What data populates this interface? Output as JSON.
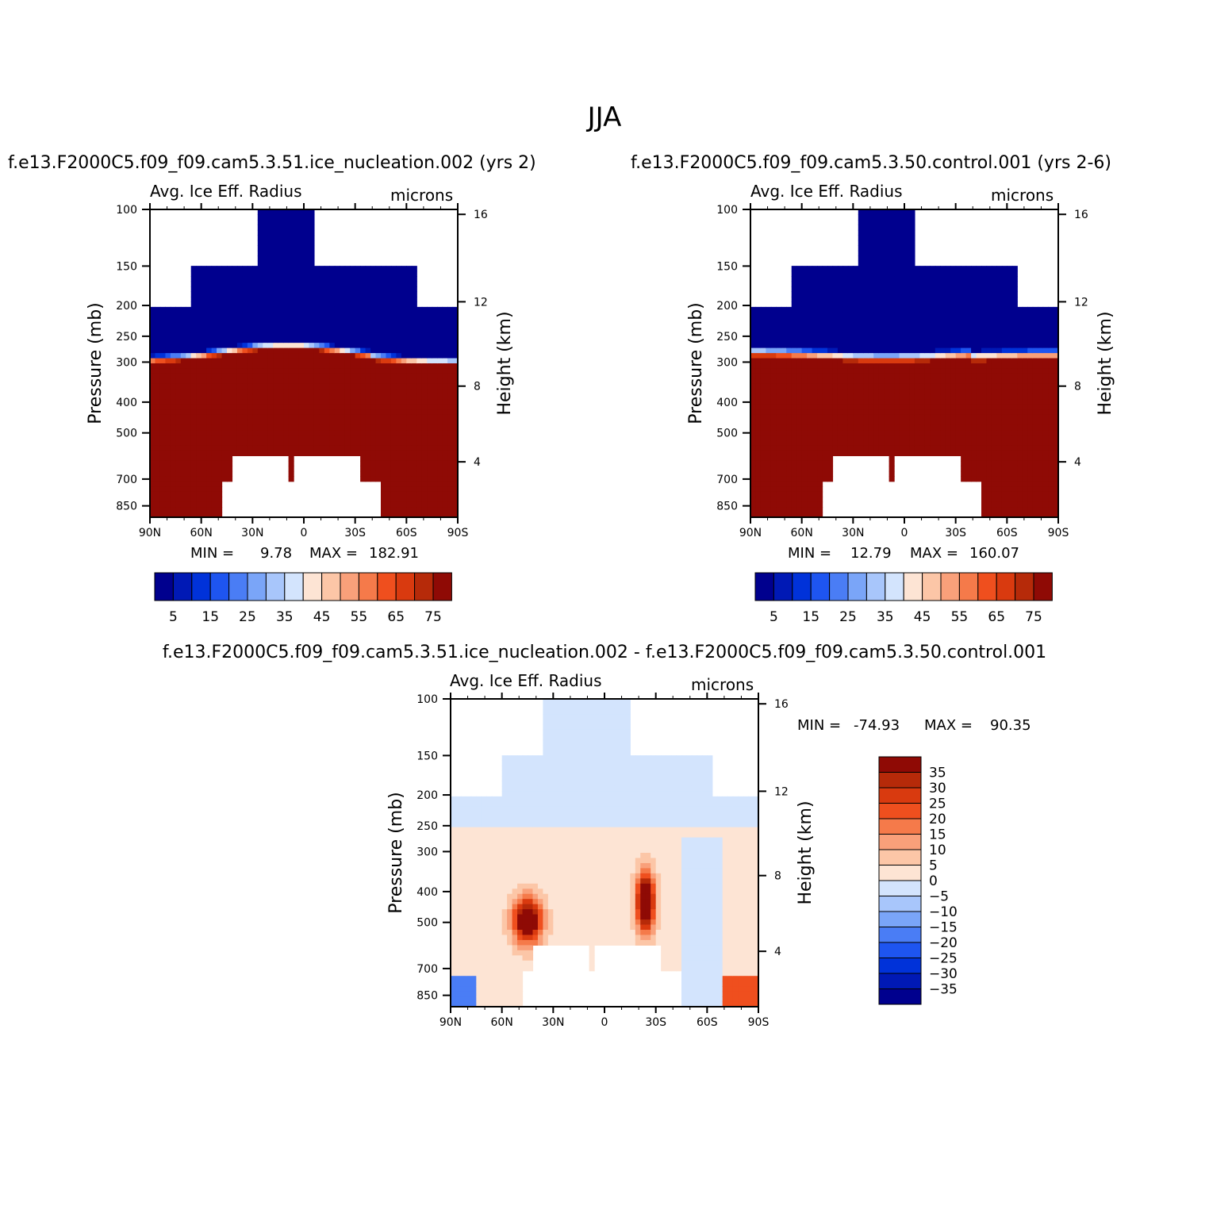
{
  "figure": {
    "title": "JJA",
    "left_case_title": "f.e13.F2000C5.f09_f09.cam5.3.51.ice_nucleation.002 (yrs 2)",
    "right_case_title": "f.e13.F2000C5.f09_f09.cam5.3.50.control.001 (yrs 2-6)",
    "diff_title": "f.e13.F2000C5.f09_f09.cam5.3.51.ice_nucleation.002 - f.e13.F2000C5.f09_f09.cam5.3.50.control.001"
  },
  "chart_data": [
    {
      "type": "heatmap",
      "id": "panel-a",
      "title_left": "Avg. Ice Eff. Radius",
      "title_right": "microns",
      "xlabel": "",
      "ylabel": "Pressure (mb)",
      "ylabel_right": "Height (km)",
      "x_ticks": [
        "90N",
        "60N",
        "30N",
        "0",
        "30S",
        "60S",
        "90S"
      ],
      "y_ticks": [
        "100",
        "150",
        "200",
        "250",
        "300",
        "400",
        "500",
        "700",
        "850"
      ],
      "y_ticks_right": [
        "16",
        "12",
        "8",
        "4"
      ],
      "stats": {
        "min_label": "MIN =",
        "min": "9.78",
        "max_label": "MAX =",
        "max": "182.91"
      },
      "colorbar": {
        "orientation": "horizontal",
        "levels": [
          5,
          10,
          15,
          20,
          25,
          30,
          35,
          40,
          45,
          50,
          55,
          60,
          65,
          70,
          75
        ],
        "labels": [
          "5",
          "15",
          "25",
          "35",
          "45",
          "55",
          "65",
          "75"
        ],
        "colors": [
          "#00008e",
          "#0019b5",
          "#0032d9",
          "#1e55f0",
          "#4a7df5",
          "#7aa5f8",
          "#a8c6fb",
          "#d3e4fd",
          "#fde4d4",
          "#fcc6a7",
          "#f9a07a",
          "#f57a4a",
          "#ef4f1e",
          "#d93a0f",
          "#b62a09",
          "#8f0a05"
        ]
      }
    },
    {
      "type": "heatmap",
      "id": "panel-b",
      "title_left": "Avg. Ice Eff. Radius",
      "title_right": "microns",
      "xlabel": "",
      "ylabel": "Pressure (mb)",
      "ylabel_right": "Height (km)",
      "x_ticks": [
        "90N",
        "60N",
        "30N",
        "0",
        "30S",
        "60S",
        "90S"
      ],
      "y_ticks": [
        "100",
        "150",
        "200",
        "250",
        "300",
        "400",
        "500",
        "700",
        "850"
      ],
      "y_ticks_right": [
        "16",
        "12",
        "8",
        "4"
      ],
      "stats": {
        "min_label": "MIN =",
        "min": "12.79",
        "max_label": "MAX =",
        "max": "160.07"
      },
      "colorbar": {
        "orientation": "horizontal",
        "levels": [
          5,
          10,
          15,
          20,
          25,
          30,
          35,
          40,
          45,
          50,
          55,
          60,
          65,
          70,
          75
        ],
        "labels": [
          "5",
          "15",
          "25",
          "35",
          "45",
          "55",
          "65",
          "75"
        ],
        "colors": [
          "#00008e",
          "#0019b5",
          "#0032d9",
          "#1e55f0",
          "#4a7df5",
          "#7aa5f8",
          "#a8c6fb",
          "#d3e4fd",
          "#fde4d4",
          "#fcc6a7",
          "#f9a07a",
          "#f57a4a",
          "#ef4f1e",
          "#d93a0f",
          "#b62a09",
          "#8f0a05"
        ]
      }
    },
    {
      "type": "heatmap",
      "id": "panel-diff",
      "title_left": "Avg. Ice Eff. Radius",
      "title_right": "microns",
      "xlabel": "",
      "ylabel": "Pressure (mb)",
      "ylabel_right": "Height (km)",
      "x_ticks": [
        "90N",
        "60N",
        "30N",
        "0",
        "30S",
        "60S",
        "90S"
      ],
      "y_ticks": [
        "100",
        "150",
        "200",
        "250",
        "300",
        "400",
        "500",
        "700",
        "850"
      ],
      "y_ticks_right": [
        "16",
        "12",
        "8",
        "4"
      ],
      "stats": {
        "min_label": "MIN =",
        "min": "-74.93",
        "max_label": "MAX =",
        "max": "90.35"
      },
      "colorbar": {
        "orientation": "vertical",
        "levels": [
          -35,
          -30,
          -25,
          -20,
          -15,
          -10,
          -5,
          0,
          5,
          10,
          15,
          20,
          25,
          30,
          35
        ],
        "labels": [
          "35",
          "30",
          "25",
          "20",
          "15",
          "10",
          "5",
          "0",
          "-5",
          "-10",
          "-15",
          "-20",
          "-25",
          "-30",
          "-35"
        ],
        "colors_top_to_bottom": [
          "#8f0a05",
          "#b62a09",
          "#d93a0f",
          "#ef4f1e",
          "#f57a4a",
          "#f9a07a",
          "#fcc6a7",
          "#fde4d4",
          "#d3e4fd",
          "#a8c6fb",
          "#7aa5f8",
          "#4a7df5",
          "#1e55f0",
          "#0032d9",
          "#0019b5",
          "#00008e"
        ]
      }
    }
  ]
}
